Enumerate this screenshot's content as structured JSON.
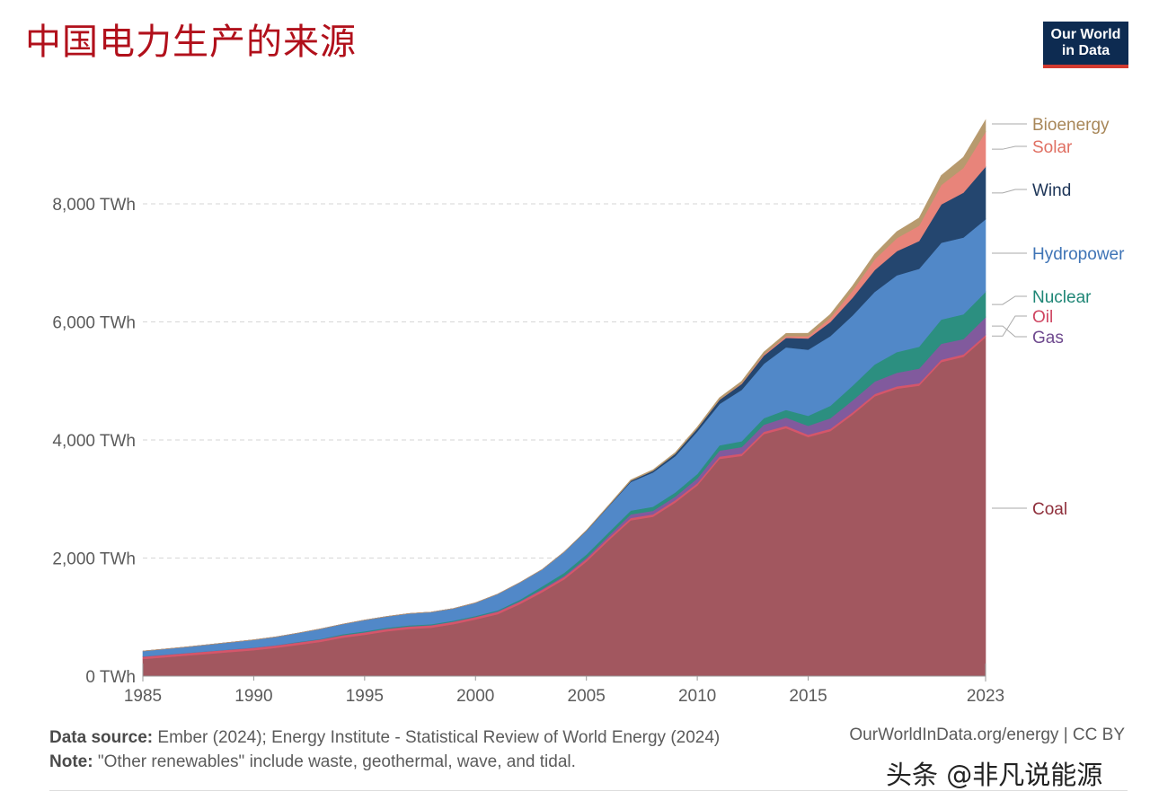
{
  "title": "中国电力生产的来源",
  "logo": {
    "line1": "Our World",
    "line2": "in Data"
  },
  "footer": {
    "source_label": "Data source:",
    "source_text": "Ember (2024); Energy Institute - Statistical Review of World Energy (2024)",
    "note_label": "Note:",
    "note_text": "\"Other renewables\" include waste, geothermal, wave, and tidal.",
    "url": "OurWorldInData.org/energy | CC BY"
  },
  "watermark": "头条 @非凡说能源",
  "chart_data": {
    "type": "area",
    "stacked": true,
    "unit": "TWh",
    "xlim": [
      1985,
      2023
    ],
    "ylim": [
      0,
      9500
    ],
    "x_ticks": [
      1985,
      1990,
      1995,
      2000,
      2005,
      2010,
      2015,
      2023
    ],
    "y_ticks": [
      0,
      2000,
      4000,
      6000,
      8000
    ],
    "y_tick_labels": [
      "0 TWh",
      "2,000 TWh",
      "4,000 TWh",
      "6,000 TWh",
      "8,000 TWh"
    ],
    "grid": "horizontal dashed",
    "x": [
      1985,
      1986,
      1987,
      1988,
      1989,
      1990,
      1991,
      1992,
      1993,
      1994,
      1995,
      1996,
      1997,
      1998,
      1999,
      2000,
      2001,
      2002,
      2003,
      2004,
      2005,
      2006,
      2007,
      2008,
      2009,
      2010,
      2011,
      2012,
      2013,
      2014,
      2015,
      2016,
      2017,
      2018,
      2019,
      2020,
      2021,
      2022,
      2023
    ],
    "series": [
      {
        "name": "Coal",
        "color": "#a2575f",
        "values": [
          290,
          320,
          350,
          380,
          410,
          440,
          480,
          530,
          580,
          650,
          700,
          760,
          800,
          820,
          880,
          960,
          1050,
          1220,
          1420,
          1640,
          1940,
          2300,
          2640,
          2700,
          2940,
          3230,
          3680,
          3730,
          4100,
          4200,
          4050,
          4150,
          4430,
          4740,
          4870,
          4920,
          5320,
          5410,
          5740
        ]
      },
      {
        "name": "Oil",
        "color": "#d5566a",
        "values": [
          40,
          40,
          40,
          40,
          40,
          40,
          40,
          40,
          40,
          40,
          40,
          40,
          40,
          40,
          40,
          40,
          40,
          40,
          40,
          40,
          40,
          40,
          40,
          40,
          40,
          40,
          40,
          40,
          40,
          40,
          40,
          40,
          40,
          40,
          40,
          40,
          40,
          40,
          40
        ]
      },
      {
        "name": "Gas",
        "color": "#815a9d",
        "values": [
          5,
          5,
          5,
          5,
          5,
          5,
          5,
          5,
          5,
          5,
          5,
          5,
          5,
          5,
          5,
          5,
          10,
          10,
          15,
          20,
          25,
          40,
          60,
          60,
          60,
          80,
          100,
          110,
          120,
          140,
          150,
          180,
          200,
          210,
          230,
          250,
          270,
          260,
          300
        ]
      },
      {
        "name": "Nuclear",
        "color": "#2c8f80",
        "values": [
          0,
          0,
          0,
          0,
          0,
          0,
          0,
          5,
          5,
          15,
          15,
          15,
          15,
          15,
          15,
          15,
          15,
          25,
          45,
          50,
          55,
          55,
          65,
          70,
          70,
          75,
          90,
          100,
          110,
          130,
          170,
          210,
          250,
          290,
          350,
          370,
          410,
          420,
          430
        ]
      },
      {
        "name": "Hydropower",
        "color": "#5188c8",
        "values": [
          90,
          95,
          100,
          110,
          120,
          130,
          140,
          150,
          170,
          170,
          190,
          190,
          200,
          205,
          205,
          222,
          275,
          290,
          285,
          355,
          400,
          440,
          485,
          580,
          615,
          720,
          700,
          870,
          920,
          1060,
          1120,
          1180,
          1190,
          1230,
          1300,
          1320,
          1300,
          1300,
          1230
        ]
      },
      {
        "name": "Wind",
        "color": "#24466f",
        "values": [
          0,
          0,
          0,
          0,
          0,
          0,
          0,
          0,
          0,
          0,
          0,
          0,
          0,
          0,
          0,
          0,
          0,
          0,
          0,
          0,
          5,
          10,
          20,
          30,
          40,
          50,
          70,
          100,
          140,
          160,
          190,
          240,
          300,
          370,
          410,
          470,
          650,
          760,
          890
        ]
      },
      {
        "name": "Solar",
        "color": "#e8847a",
        "values": [
          0,
          0,
          0,
          0,
          0,
          0,
          0,
          0,
          0,
          0,
          0,
          0,
          0,
          0,
          0,
          0,
          0,
          0,
          0,
          0,
          0,
          0,
          0,
          0,
          0,
          0,
          5,
          10,
          20,
          30,
          40,
          70,
          120,
          180,
          220,
          260,
          330,
          420,
          590
        ]
      },
      {
        "name": "Bioenergy",
        "color": "#b79a6e",
        "values": [
          0,
          0,
          0,
          0,
          0,
          0,
          0,
          0,
          0,
          0,
          0,
          0,
          0,
          0,
          0,
          0,
          0,
          0,
          0,
          0,
          5,
          10,
          15,
          15,
          20,
          25,
          30,
          35,
          40,
          45,
          50,
          60,
          80,
          90,
          110,
          130,
          160,
          180,
          200
        ]
      }
    ],
    "legend_order_top_to_bottom": [
      "Bioenergy",
      "Solar",
      "Wind",
      "Hydropower",
      "Nuclear",
      "Oil",
      "Gas",
      "Coal"
    ]
  }
}
